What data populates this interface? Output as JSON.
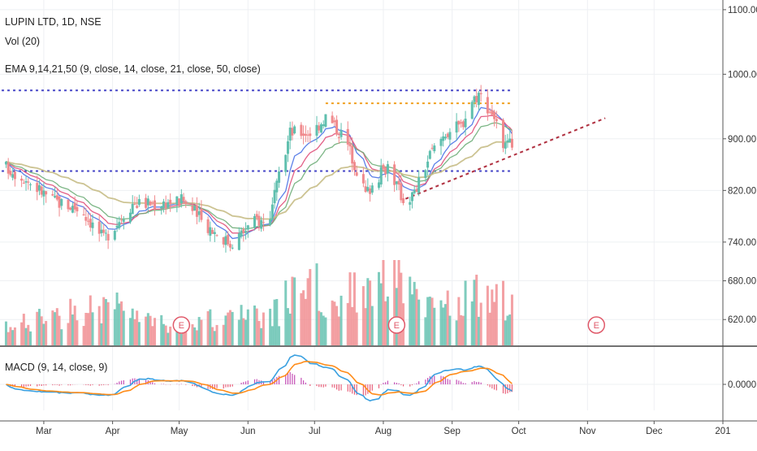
{
  "legend": {
    "symbol": "LUPIN LTD, 1D, NSE",
    "volume": "Vol (20)",
    "ema": "EMA 9,14,21,50 (9, close, 14, close, 21, close, 50, close)",
    "macd": "MACD (9, 14, close, 9)"
  },
  "colors": {
    "up": "#5fbfae",
    "down": "#f08a8d",
    "ema9": "#4a72e6",
    "ema14": "#e0507a",
    "ema21": "#6fae79",
    "ema50": "#c7bd86",
    "macd_line": "#3aa0e0",
    "signal_line": "#ff8c1a",
    "hist_up": "#c44fb6",
    "hist_down": "#e8607a",
    "level_blue": "#4848c8",
    "level_orange": "#f0a020",
    "trend_red": "#b03040",
    "earnings": "#e05a6a"
  },
  "earnings_marker": "E",
  "chart_data": {
    "type": "candlestick",
    "price_axis": {
      "ticks": [
        "1100.00",
        "1000.00",
        "900.00",
        "820.00",
        "740.00",
        "680.00",
        "620.00"
      ],
      "ylim": [
        580,
        1115
      ]
    },
    "macd_axis": {
      "ticks": [
        "0.0000"
      ]
    },
    "x_axis": {
      "ticks": [
        {
          "label": "Mar",
          "date": "2018-03-01"
        },
        {
          "label": "Apr",
          "date": "2018-04-01"
        },
        {
          "label": "May",
          "date": "2018-05-01"
        },
        {
          "label": "Jun",
          "date": "2018-06-01"
        },
        {
          "label": "Jul",
          "date": "2018-07-01"
        },
        {
          "label": "Aug",
          "date": "2018-08-01"
        },
        {
          "label": "Sep",
          "date": "2018-09-01"
        },
        {
          "label": "Oct",
          "date": "2018-10-01"
        },
        {
          "label": "Nov",
          "date": "2018-11-01"
        },
        {
          "label": "Dec",
          "date": "2018-12-01"
        },
        {
          "label": "201",
          "date": "2019-01-01"
        }
      ],
      "range": [
        "2018-02-10",
        "2019-01-01"
      ]
    },
    "close_anchors": [
      {
        "date": "2018-02-10",
        "close": 860
      },
      {
        "date": "2018-02-20",
        "close": 840
      },
      {
        "date": "2018-03-05",
        "close": 805
      },
      {
        "date": "2018-03-18",
        "close": 790
      },
      {
        "date": "2018-03-28",
        "close": 745
      },
      {
        "date": "2018-04-10",
        "close": 800
      },
      {
        "date": "2018-04-20",
        "close": 800
      },
      {
        "date": "2018-05-03",
        "close": 805
      },
      {
        "date": "2018-05-12",
        "close": 770
      },
      {
        "date": "2018-05-24",
        "close": 738
      },
      {
        "date": "2018-06-05",
        "close": 775
      },
      {
        "date": "2018-06-10",
        "close": 768
      },
      {
        "date": "2018-06-20",
        "close": 910
      },
      {
        "date": "2018-06-30",
        "close": 910
      },
      {
        "date": "2018-07-06",
        "close": 935
      },
      {
        "date": "2018-07-15",
        "close": 900
      },
      {
        "date": "2018-07-24",
        "close": 815
      },
      {
        "date": "2018-08-03",
        "close": 860
      },
      {
        "date": "2018-08-10",
        "close": 805
      },
      {
        "date": "2018-08-15",
        "close": 815
      },
      {
        "date": "2018-08-22",
        "close": 875
      },
      {
        "date": "2018-08-29",
        "close": 910
      },
      {
        "date": "2018-09-05",
        "close": 920
      },
      {
        "date": "2018-09-10",
        "close": 960
      },
      {
        "date": "2018-09-13",
        "close": 970
      },
      {
        "date": "2018-09-20",
        "close": 935
      },
      {
        "date": "2018-09-24",
        "close": 880
      },
      {
        "date": "2018-09-28",
        "close": 895
      }
    ],
    "volume_anchors": [
      {
        "date": "2018-02-10",
        "volume": 0.2
      },
      {
        "date": "2018-03-28",
        "volume": 0.5
      },
      {
        "date": "2018-04-25",
        "volume": 0.25
      },
      {
        "date": "2018-06-15",
        "volume": 0.4
      },
      {
        "date": "2018-06-25",
        "volume": 0.9
      },
      {
        "date": "2018-07-10",
        "volume": 0.5
      },
      {
        "date": "2018-08-06",
        "volume": 1.0
      },
      {
        "date": "2018-08-20",
        "volume": 0.4
      },
      {
        "date": "2018-09-12",
        "volume": 0.6
      },
      {
        "date": "2018-09-28",
        "volume": 0.55
      }
    ],
    "horizontal_levels": [
      {
        "name": "resistance",
        "value": 975,
        "from": "2018-02-10",
        "to": "2018-09-28",
        "color": "level_blue"
      },
      {
        "name": "support",
        "value": 850,
        "from": "2018-02-10",
        "to": "2018-09-28",
        "color": "level_blue"
      },
      {
        "name": "recent-high",
        "value": 955,
        "from": "2018-07-06",
        "to": "2018-09-28",
        "color": "level_orange"
      }
    ],
    "trendline": {
      "from": {
        "date": "2018-08-11",
        "value": 807
      },
      "to": {
        "date": "2018-11-09",
        "value": 932
      }
    },
    "earnings_dates": [
      "2018-05-02",
      "2018-08-07",
      "2018-11-05"
    ]
  }
}
